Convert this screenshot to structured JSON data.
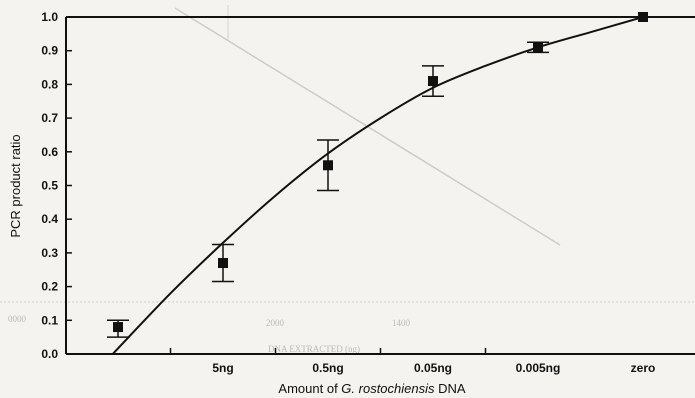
{
  "chart_data": {
    "type": "scatter",
    "title": "",
    "ylabel": "PCR product ratio",
    "xlabel": {
      "prefix": "Amount of ",
      "species": "G. rostochiensis",
      "suffix": " DNA"
    },
    "categories": [
      "",
      "5ng",
      "0.5ng",
      "0.05ng",
      "0.005ng",
      "zero"
    ],
    "ylim": [
      0,
      1.0
    ],
    "y_ticks": [
      "0.0",
      "0.1",
      "0.2",
      "0.3",
      "0.4",
      "0.5",
      "0.6",
      "0.7",
      "0.8",
      "0.9",
      "1.0"
    ],
    "grid": false,
    "series": [
      {
        "points": [
          {
            "x": 0,
            "y": 0.08,
            "err_low": 0.05,
            "err_high": 0.1
          },
          {
            "x": 1,
            "y": 0.27,
            "err_low": 0.215,
            "err_high": 0.325
          },
          {
            "x": 2,
            "y": 0.56,
            "err_low": 0.485,
            "err_high": 0.635
          },
          {
            "x": 3,
            "y": 0.81,
            "err_low": 0.765,
            "err_high": 0.855
          },
          {
            "x": 4,
            "y": 0.91,
            "err_low": 0.895,
            "err_high": 0.925
          },
          {
            "x": 5,
            "y": 1.0
          }
        ]
      }
    ],
    "fit_curve": [
      {
        "x": -0.05,
        "y": 0.0
      },
      {
        "x": 0.5,
        "y": 0.18
      },
      {
        "x": 1.0,
        "y": 0.33
      },
      {
        "x": 1.5,
        "y": 0.47
      },
      {
        "x": 2.0,
        "y": 0.595
      },
      {
        "x": 2.5,
        "y": 0.7
      },
      {
        "x": 3.0,
        "y": 0.79
      },
      {
        "x": 3.5,
        "y": 0.855
      },
      {
        "x": 4.0,
        "y": 0.91
      },
      {
        "x": 4.5,
        "y": 0.955
      },
      {
        "x": 5.0,
        "y": 1.0
      }
    ],
    "colors": {
      "ink": "#111111",
      "paper": "#f4f3f0",
      "bleed": "#c4c1bb"
    },
    "bleed_through_text": [
      "0000",
      "2000",
      "1400",
      "DNA EXTRACTED (ng)"
    ]
  }
}
